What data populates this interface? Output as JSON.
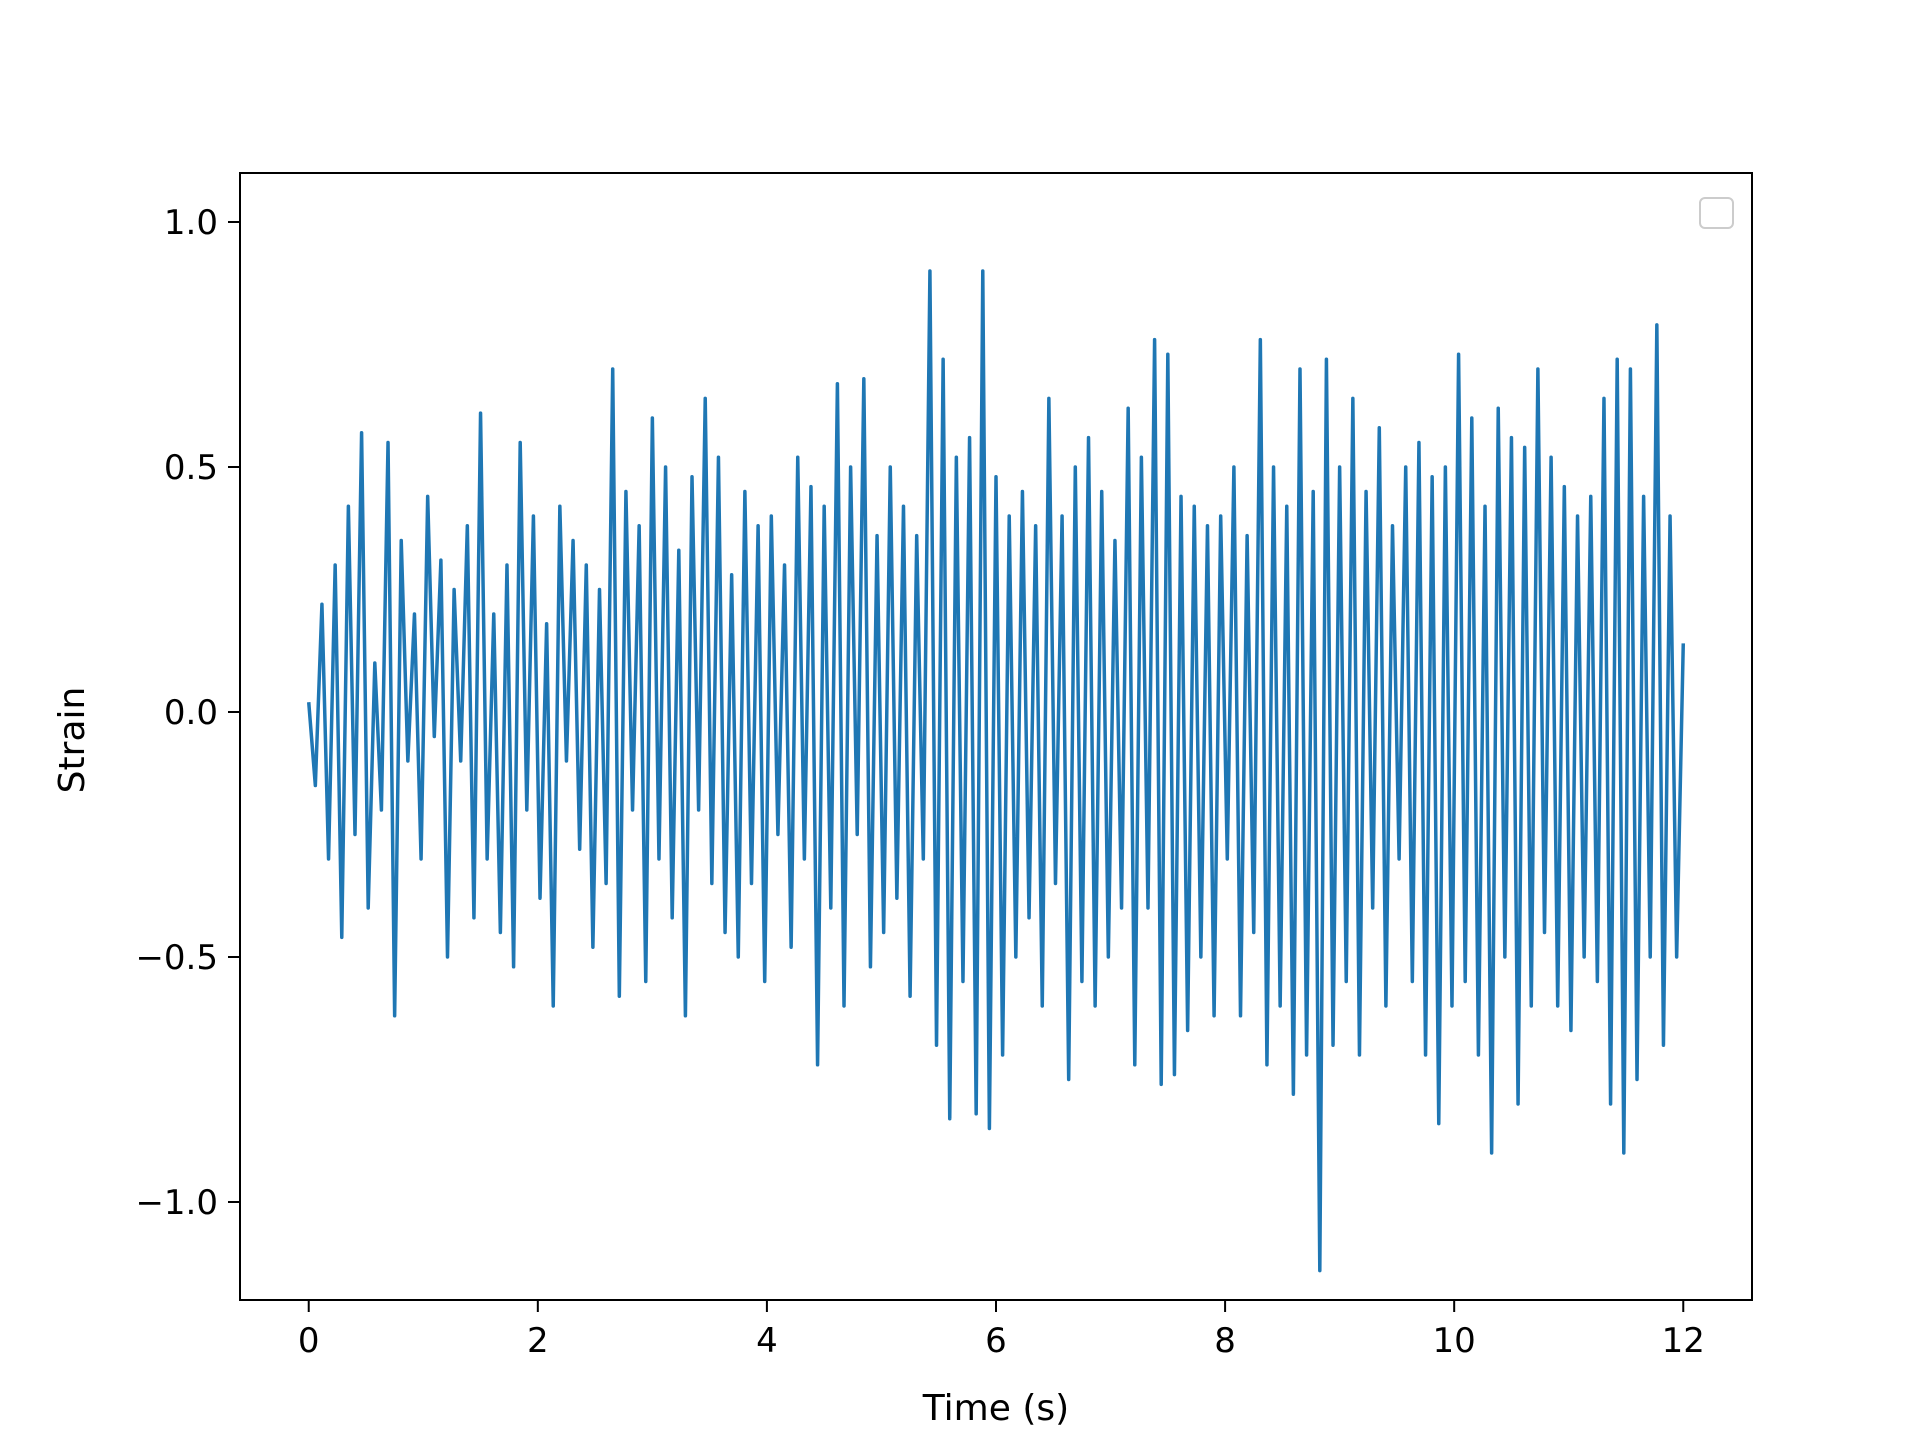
{
  "chart_data": {
    "type": "line",
    "title": "",
    "xlabel": "Time (s)",
    "ylabel": "Strain",
    "xlim": [
      -0.6,
      12.6
    ],
    "ylim": [
      -1.2,
      1.1
    ],
    "xticks": [
      0,
      2,
      4,
      6,
      8,
      10,
      12
    ],
    "xtick_labels": [
      "0",
      "2",
      "4",
      "6",
      "8",
      "10",
      "12"
    ],
    "yticks": [
      -1.0,
      -0.5,
      0.0,
      0.5,
      1.0
    ],
    "ytick_labels": [
      "−1.0",
      "−0.5",
      "0.0",
      "0.5",
      "1.0"
    ],
    "legend": {
      "placement": "top-right",
      "entries": []
    },
    "grid": false,
    "series": [
      {
        "color": "#1f77b4",
        "x_start": 0.0,
        "x_end": 12.0,
        "values": [
          0.02,
          -0.15,
          0.22,
          -0.3,
          0.3,
          -0.46,
          0.42,
          -0.25,
          0.57,
          -0.4,
          0.1,
          -0.2,
          0.55,
          -0.62,
          0.35,
          -0.1,
          0.2,
          -0.3,
          0.44,
          -0.05,
          0.31,
          -0.5,
          0.25,
          -0.1,
          0.38,
          -0.42,
          0.61,
          -0.3,
          0.2,
          -0.45,
          0.3,
          -0.52,
          0.55,
          -0.2,
          0.4,
          -0.38,
          0.18,
          -0.6,
          0.42,
          -0.1,
          0.35,
          -0.28,
          0.3,
          -0.48,
          0.25,
          -0.35,
          0.7,
          -0.58,
          0.45,
          -0.2,
          0.38,
          -0.55,
          0.6,
          -0.3,
          0.5,
          -0.42,
          0.33,
          -0.62,
          0.48,
          -0.2,
          0.64,
          -0.35,
          0.52,
          -0.45,
          0.28,
          -0.5,
          0.45,
          -0.35,
          0.38,
          -0.55,
          0.4,
          -0.25,
          0.3,
          -0.48,
          0.52,
          -0.3,
          0.46,
          -0.72,
          0.42,
          -0.4,
          0.67,
          -0.6,
          0.5,
          -0.25,
          0.68,
          -0.52,
          0.36,
          -0.45,
          0.5,
          -0.38,
          0.42,
          -0.58,
          0.36,
          -0.3,
          0.9,
          -0.68,
          0.72,
          -0.83,
          0.52,
          -0.55,
          0.56,
          -0.82,
          0.9,
          -0.85,
          0.48,
          -0.7,
          0.4,
          -0.5,
          0.45,
          -0.42,
          0.38,
          -0.6,
          0.64,
          -0.35,
          0.4,
          -0.75,
          0.5,
          -0.55,
          0.56,
          -0.6,
          0.45,
          -0.5,
          0.35,
          -0.4,
          0.62,
          -0.72,
          0.52,
          -0.4,
          0.76,
          -0.76,
          0.73,
          -0.74,
          0.44,
          -0.65,
          0.42,
          -0.5,
          0.38,
          -0.62,
          0.4,
          -0.3,
          0.5,
          -0.62,
          0.36,
          -0.45,
          0.76,
          -0.72,
          0.5,
          -0.6,
          0.42,
          -0.78,
          0.7,
          -0.7,
          0.45,
          -1.14,
          0.72,
          -0.68,
          0.5,
          -0.55,
          0.64,
          -0.7,
          0.45,
          -0.4,
          0.58,
          -0.6,
          0.38,
          -0.3,
          0.5,
          -0.55,
          0.55,
          -0.7,
          0.48,
          -0.84,
          0.5,
          -0.6,
          0.73,
          -0.55,
          0.6,
          -0.7,
          0.42,
          -0.9,
          0.62,
          -0.5,
          0.56,
          -0.8,
          0.54,
          -0.6,
          0.7,
          -0.45,
          0.52,
          -0.6,
          0.46,
          -0.65,
          0.4,
          -0.5,
          0.44,
          -0.55,
          0.64,
          -0.8,
          0.72,
          -0.9,
          0.7,
          -0.75,
          0.44,
          -0.5,
          0.79,
          -0.68,
          0.4,
          -0.5,
          0.14
        ]
      }
    ]
  }
}
